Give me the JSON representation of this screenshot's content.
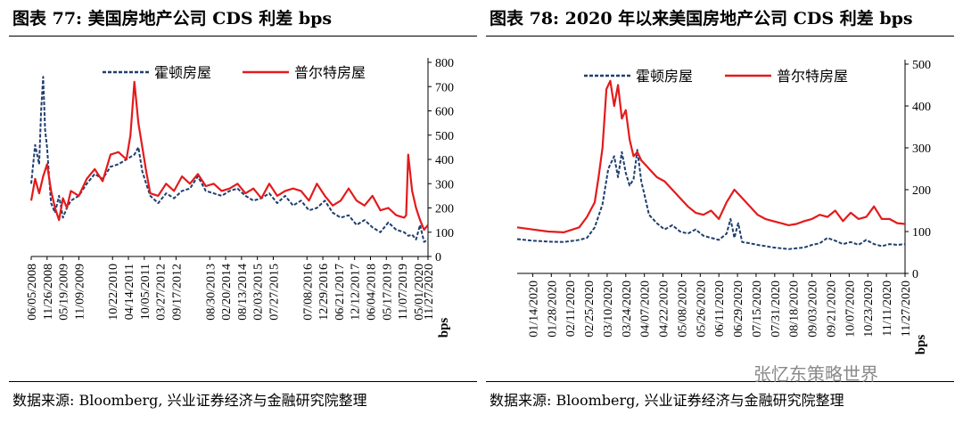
{
  "left_panel": {
    "title": "图表 77: 美国房地产公司 CDS 利差 bps",
    "source": "数据来源: Bloomberg, 兴业证券经济与金融研究院整理"
  },
  "right_panel": {
    "title": "图表 78: 2020 年以来美国房地产公司 CDS 利差 bps",
    "source": "数据来源: Bloomberg, 兴业证券经济与金融研究院整理"
  },
  "watermark": "张忆东策略世界",
  "chart_data": [
    {
      "type": "line",
      "title": "美国房地产公司 CDS 利差 bps",
      "ylabel": "bps",
      "ylim": [
        0,
        800
      ],
      "yticks": [
        0,
        100,
        200,
        300,
        400,
        500,
        600,
        700,
        800
      ],
      "yaxis_position": "right",
      "legend": "top",
      "grid": false,
      "x_tick_labels": [
        "06/05/2008",
        "11/26/2008",
        "05/19/2009",
        "11/09/2009",
        "10/22/2010",
        "04/14/2011",
        "10/05/2011",
        "03/27/2012",
        "09/17/2012",
        "08/30/2013",
        "02/20/2014",
        "08/13/2014",
        "02/03/2015",
        "07/27/2015",
        "07/08/2016",
        "12/29/2016",
        "06/21/2017",
        "12/12/2017",
        "06/04/2018",
        "05/17/2019",
        "11/07/2019",
        "05/01/2020",
        "11/27/2020"
      ],
      "x_tick_pos": [
        0.0,
        0.04,
        0.08,
        0.12,
        0.205,
        0.245,
        0.285,
        0.325,
        0.365,
        0.45,
        0.49,
        0.53,
        0.57,
        0.61,
        0.695,
        0.735,
        0.775,
        0.815,
        0.855,
        0.895,
        0.935,
        0.975,
        1.0
      ],
      "series": [
        {
          "name": "霍顿房屋",
          "color": "#1f3f6e",
          "style": "dashed",
          "x": [
            0.0,
            0.01,
            0.02,
            0.025,
            0.03,
            0.035,
            0.04,
            0.045,
            0.05,
            0.06,
            0.07,
            0.08,
            0.09,
            0.1,
            0.12,
            0.14,
            0.16,
            0.18,
            0.2,
            0.22,
            0.24,
            0.26,
            0.27,
            0.28,
            0.29,
            0.3,
            0.32,
            0.34,
            0.36,
            0.38,
            0.4,
            0.42,
            0.44,
            0.46,
            0.48,
            0.5,
            0.52,
            0.54,
            0.56,
            0.58,
            0.6,
            0.62,
            0.64,
            0.66,
            0.68,
            0.7,
            0.72,
            0.74,
            0.76,
            0.78,
            0.8,
            0.82,
            0.84,
            0.86,
            0.88,
            0.9,
            0.92,
            0.94,
            0.95,
            0.96,
            0.97,
            0.98,
            0.99,
            1.0
          ],
          "y": [
            300,
            460,
            380,
            600,
            740,
            520,
            450,
            330,
            220,
            180,
            250,
            160,
            200,
            230,
            250,
            300,
            340,
            320,
            370,
            380,
            400,
            420,
            450,
            350,
            300,
            250,
            220,
            260,
            240,
            270,
            280,
            330,
            270,
            260,
            250,
            270,
            280,
            250,
            230,
            240,
            260,
            220,
            250,
            210,
            230,
            190,
            200,
            230,
            180,
            160,
            170,
            130,
            150,
            120,
            100,
            140,
            110,
            100,
            85,
            90,
            70,
            130,
            60,
            70
          ]
        },
        {
          "name": "普尔特房屋",
          "color": "#e41a1c",
          "style": "solid",
          "x": [
            0.0,
            0.01,
            0.02,
            0.03,
            0.04,
            0.05,
            0.06,
            0.07,
            0.08,
            0.09,
            0.1,
            0.12,
            0.14,
            0.16,
            0.18,
            0.2,
            0.22,
            0.24,
            0.25,
            0.26,
            0.27,
            0.28,
            0.29,
            0.3,
            0.32,
            0.34,
            0.36,
            0.38,
            0.4,
            0.42,
            0.44,
            0.46,
            0.48,
            0.5,
            0.52,
            0.54,
            0.56,
            0.58,
            0.6,
            0.62,
            0.64,
            0.66,
            0.68,
            0.7,
            0.72,
            0.74,
            0.76,
            0.78,
            0.8,
            0.82,
            0.84,
            0.86,
            0.88,
            0.9,
            0.92,
            0.94,
            0.945,
            0.95,
            0.96,
            0.97,
            0.98,
            0.99,
            1.0
          ],
          "y": [
            230,
            320,
            260,
            330,
            380,
            270,
            200,
            150,
            240,
            200,
            270,
            250,
            320,
            360,
            310,
            420,
            430,
            400,
            500,
            720,
            550,
            450,
            350,
            260,
            250,
            300,
            270,
            330,
            300,
            340,
            290,
            300,
            270,
            280,
            300,
            260,
            280,
            240,
            300,
            250,
            270,
            280,
            270,
            230,
            300,
            250,
            210,
            230,
            280,
            230,
            210,
            250,
            190,
            200,
            170,
            160,
            170,
            420,
            270,
            200,
            150,
            110,
            130
          ]
        }
      ]
    },
    {
      "type": "line",
      "title": "2020 年以来美国房地产公司 CDS 利差 bps",
      "ylabel": "bps",
      "ylim": [
        0,
        500
      ],
      "yticks": [
        0,
        100,
        200,
        300,
        400,
        500
      ],
      "yaxis_position": "right",
      "legend": "top",
      "grid": false,
      "x_tick_labels": [
        "01/14/2020",
        "01/28/2020",
        "02/11/2020",
        "02/25/2020",
        "03/10/2020",
        "03/24/2020",
        "04/07/2020",
        "04/22/2020",
        "05/08/2020",
        "05/26/2020",
        "06/11/2020",
        "06/29/2020",
        "07/15/2020",
        "07/31/2020",
        "08/18/2020",
        "09/03/2020",
        "09/21/2020",
        "10/07/2020",
        "10/23/2020",
        "11/11/2020",
        "11/27/2020"
      ],
      "x_tick_pos": [
        0.04,
        0.088,
        0.136,
        0.184,
        0.232,
        0.28,
        0.328,
        0.376,
        0.424,
        0.472,
        0.52,
        0.568,
        0.616,
        0.664,
        0.712,
        0.76,
        0.808,
        0.856,
        0.904,
        0.952,
        1.0
      ],
      "series": [
        {
          "name": "霍顿房屋",
          "color": "#1f3f6e",
          "style": "dashed",
          "x": [
            0.0,
            0.04,
            0.08,
            0.12,
            0.16,
            0.18,
            0.2,
            0.22,
            0.235,
            0.25,
            0.26,
            0.27,
            0.28,
            0.29,
            0.3,
            0.31,
            0.32,
            0.33,
            0.34,
            0.36,
            0.38,
            0.4,
            0.42,
            0.44,
            0.46,
            0.48,
            0.5,
            0.52,
            0.54,
            0.55,
            0.56,
            0.57,
            0.58,
            0.6,
            0.62,
            0.64,
            0.66,
            0.68,
            0.7,
            0.72,
            0.74,
            0.76,
            0.78,
            0.8,
            0.82,
            0.84,
            0.86,
            0.88,
            0.9,
            0.92,
            0.94,
            0.96,
            0.98,
            1.0
          ],
          "y": [
            82,
            78,
            76,
            75,
            80,
            85,
            110,
            165,
            250,
            280,
            230,
            290,
            240,
            210,
            225,
            295,
            220,
            180,
            140,
            120,
            105,
            115,
            100,
            95,
            105,
            90,
            85,
            80,
            95,
            130,
            85,
            120,
            75,
            72,
            68,
            65,
            62,
            60,
            58,
            60,
            62,
            68,
            72,
            85,
            78,
            70,
            75,
            68,
            80,
            70,
            65,
            70,
            68,
            70
          ]
        },
        {
          "name": "普尔特房屋",
          "color": "#e41a1c",
          "style": "solid",
          "x": [
            0.0,
            0.04,
            0.08,
            0.12,
            0.16,
            0.18,
            0.2,
            0.21,
            0.22,
            0.23,
            0.24,
            0.25,
            0.26,
            0.27,
            0.28,
            0.29,
            0.3,
            0.31,
            0.32,
            0.33,
            0.34,
            0.36,
            0.38,
            0.4,
            0.42,
            0.44,
            0.46,
            0.48,
            0.5,
            0.52,
            0.54,
            0.56,
            0.58,
            0.6,
            0.62,
            0.64,
            0.66,
            0.68,
            0.7,
            0.72,
            0.74,
            0.76,
            0.78,
            0.8,
            0.82,
            0.84,
            0.86,
            0.88,
            0.9,
            0.92,
            0.94,
            0.96,
            0.98,
            1.0
          ],
          "y": [
            110,
            105,
            100,
            98,
            110,
            135,
            170,
            230,
            300,
            440,
            460,
            400,
            450,
            370,
            390,
            320,
            280,
            290,
            270,
            260,
            250,
            230,
            220,
            200,
            180,
            160,
            145,
            140,
            150,
            130,
            170,
            200,
            180,
            160,
            140,
            130,
            125,
            120,
            115,
            118,
            125,
            130,
            140,
            135,
            150,
            125,
            145,
            130,
            135,
            160,
            130,
            130,
            120,
            118
          ]
        }
      ]
    }
  ]
}
